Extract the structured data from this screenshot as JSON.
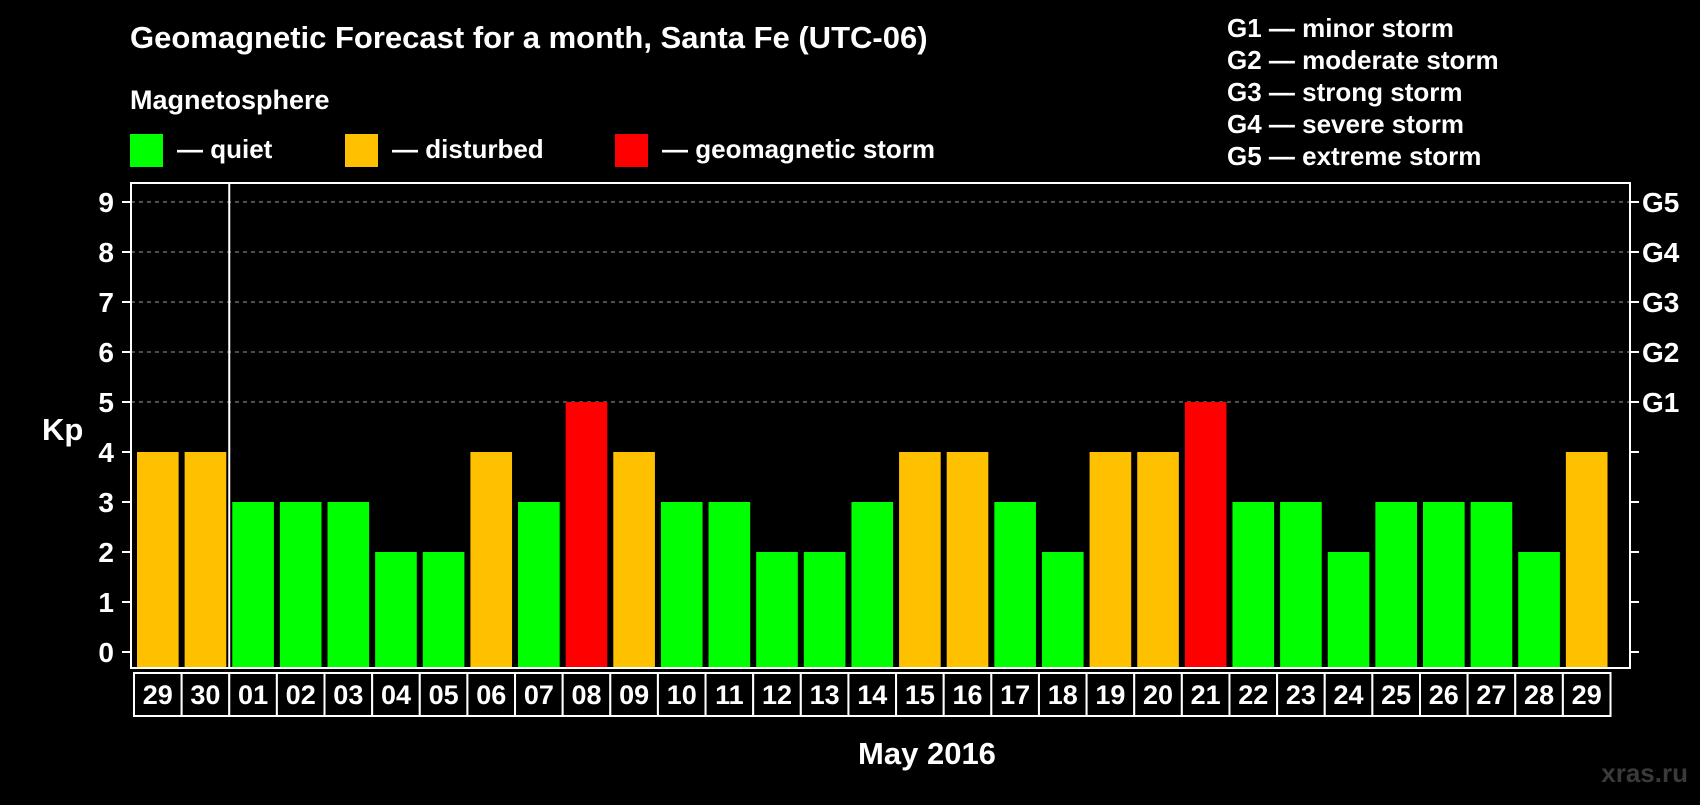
{
  "chart_data": {
    "type": "bar",
    "title": "Geomagnetic Forecast for a month, Santa Fe (UTC-06)",
    "subtitle": "Magnetosphere",
    "legend": [
      {
        "label": "— quiet",
        "color": "#00ff00"
      },
      {
        "label": "— disturbed",
        "color": "#ffc000"
      },
      {
        "label": "— geomagnetic storm",
        "color": "#ff0000"
      }
    ],
    "storm_levels": [
      "G1 — minor storm",
      "G2 — moderate storm",
      "G3 — strong storm",
      "G4 — severe storm",
      "G5 — extreme storm"
    ],
    "ylabel": "Kp",
    "xlabel": "May 2016",
    "ylim": [
      0,
      9
    ],
    "yticks": [
      "0",
      "1",
      "2",
      "3",
      "4",
      "5",
      "6",
      "7",
      "8",
      "9"
    ],
    "right_ticks": [
      {
        "value": 5,
        "label": "G1"
      },
      {
        "value": 6,
        "label": "G2"
      },
      {
        "value": 7,
        "label": "G3"
      },
      {
        "value": 8,
        "label": "G4"
      },
      {
        "value": 9,
        "label": "G5"
      }
    ],
    "grid": "dashed horizontal lines at Kp 5–9",
    "month_separator_after": "30",
    "categories": [
      "29",
      "30",
      "01",
      "02",
      "03",
      "04",
      "05",
      "06",
      "07",
      "08",
      "09",
      "10",
      "11",
      "12",
      "13",
      "14",
      "15",
      "16",
      "17",
      "18",
      "19",
      "20",
      "21",
      "22",
      "23",
      "24",
      "25",
      "26",
      "27",
      "28",
      "29"
    ],
    "values": [
      4,
      4,
      3,
      3,
      3,
      2,
      2,
      4,
      3,
      5,
      4,
      3,
      3,
      2,
      2,
      3,
      4,
      4,
      3,
      2,
      4,
      4,
      5,
      3,
      3,
      2,
      3,
      3,
      3,
      2,
      4
    ],
    "colors": {
      "quiet": "#00ff00",
      "disturbed": "#ffc000",
      "storm": "#ff0000"
    }
  },
  "watermark": "xras.ru"
}
